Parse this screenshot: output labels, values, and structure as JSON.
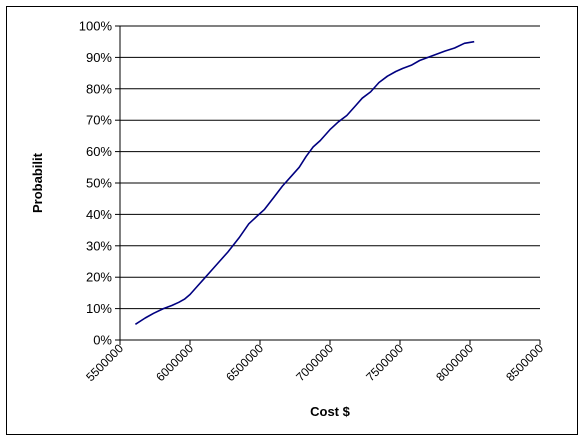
{
  "chart_data": {
    "type": "line",
    "title": "",
    "xlabel": "Cost $",
    "ylabel": "Probabilit",
    "xlim": [
      5500000,
      8500000
    ],
    "ylim": [
      0,
      1
    ],
    "x_ticks": [
      "5500000",
      "6000000",
      "6500000",
      "7000000",
      "7500000",
      "8000000",
      "8500000"
    ],
    "y_ticks": [
      "0%",
      "10%",
      "20%",
      "30%",
      "40%",
      "50%",
      "60%",
      "70%",
      "80%",
      "90%",
      "100%"
    ],
    "grid": "horizontal",
    "legend": "none",
    "line_color": "#000080",
    "series": [
      {
        "x": [
          5610000,
          5680000,
          5740000,
          5810000,
          5870000,
          5920000,
          5960000,
          6000000,
          6050000,
          6100000,
          6160000,
          6210000,
          6270000,
          6350000,
          6420000,
          6480000,
          6530000,
          6600000,
          6660000,
          6730000,
          6780000,
          6830000,
          6880000,
          6930000,
          7000000,
          7060000,
          7120000,
          7180000,
          7230000,
          7290000,
          7350000,
          7410000,
          7470000,
          7520000,
          7580000,
          7640000,
          7700000,
          7760000,
          7820000,
          7890000,
          7960000,
          8030000
        ],
        "y": [
          0.05,
          0.07,
          0.085,
          0.1,
          0.11,
          0.12,
          0.13,
          0.145,
          0.17,
          0.195,
          0.225,
          0.25,
          0.28,
          0.325,
          0.37,
          0.395,
          0.415,
          0.455,
          0.49,
          0.525,
          0.55,
          0.585,
          0.615,
          0.635,
          0.67,
          0.695,
          0.715,
          0.745,
          0.77,
          0.79,
          0.82,
          0.84,
          0.855,
          0.865,
          0.875,
          0.89,
          0.9,
          0.91,
          0.92,
          0.93,
          0.945,
          0.95
        ]
      }
    ]
  }
}
